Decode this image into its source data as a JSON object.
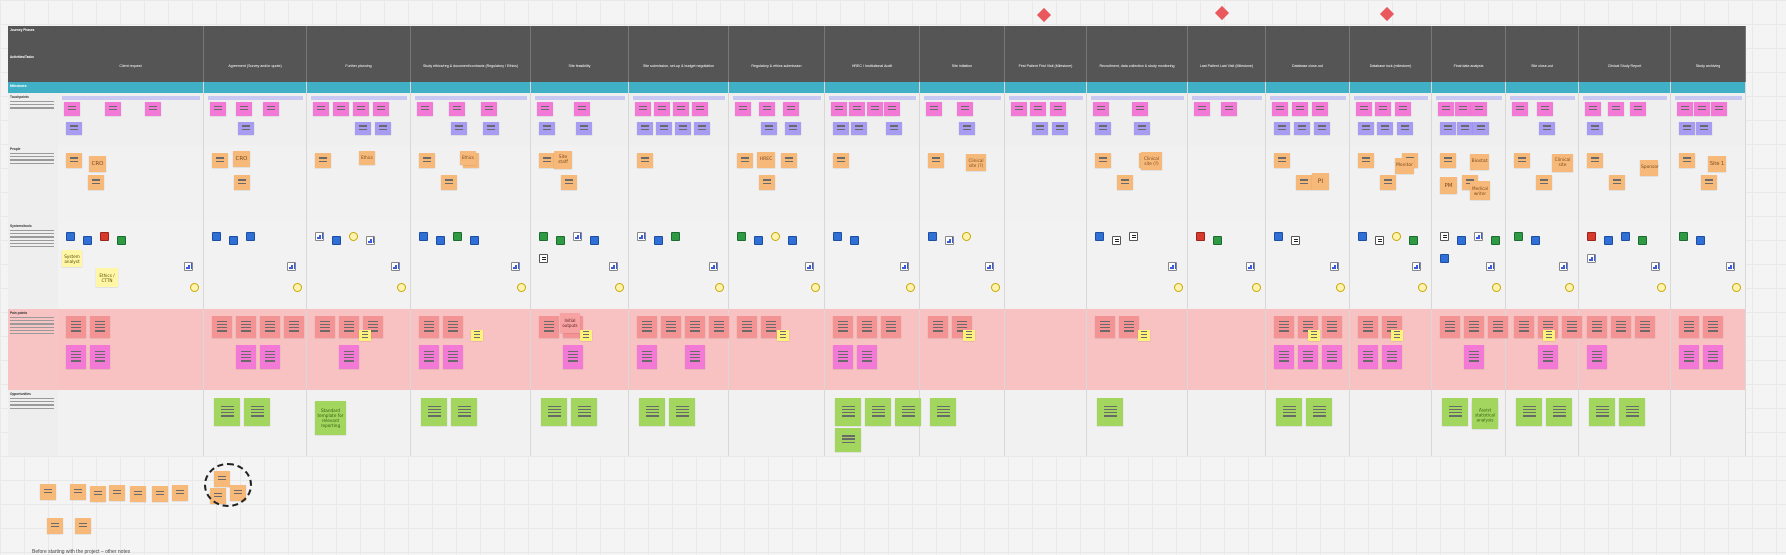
{
  "phases": [
    "Client request",
    "Agreement (Survey and/or quote)",
    "Further planning",
    "Study ethics/reg & document/contracts (Regulatory / Ethics)",
    "Site feasibility",
    "Site submission, set-up & budget negotiation",
    "Regulatory & ethics submission",
    "HREC / Institutional Audit",
    "Site initiation",
    "First Patient First Visit (Milestone)",
    "Recruitment, data collection & study monitoring",
    "Last Patient Last Visit (Milestone)",
    "Database close-out",
    "Database lock (milestone)",
    "Final data analysis",
    "Site close-out",
    "Clinical Study Report",
    "Study archiving"
  ],
  "lanes": {
    "phase": "Journey Phases",
    "activities": "Activities/Tasks",
    "milestones": "Milestones",
    "touchpoints": "Touchpoints",
    "people": "People",
    "systems": "Systems/tools",
    "pain": "Pain points",
    "opportunities": "Opportunities"
  },
  "handwritten": {
    "cro": "CRO",
    "system_analyst": "System analyst",
    "ethics_cttn": "Ethics / CTTN",
    "ethics": "Ethics",
    "site_staff": "Site staff",
    "hrec": "HREC",
    "clinical_site": "Clinical site (?)",
    "clinical_site_2": "Clinical site",
    "pi": "PI",
    "monitor": "Monitor",
    "pm": "PM",
    "biostat": "Biostat",
    "medical_writer": "Medical writer",
    "sponsor": "Sponsor",
    "site_1": "Site 1",
    "standard_template": "Standard template for relevant reporting",
    "assist_statistical": "Assist statistical analysis",
    "initial_outputs": "Initial outputs"
  },
  "footer": "Before starting with the project – other notes"
}
